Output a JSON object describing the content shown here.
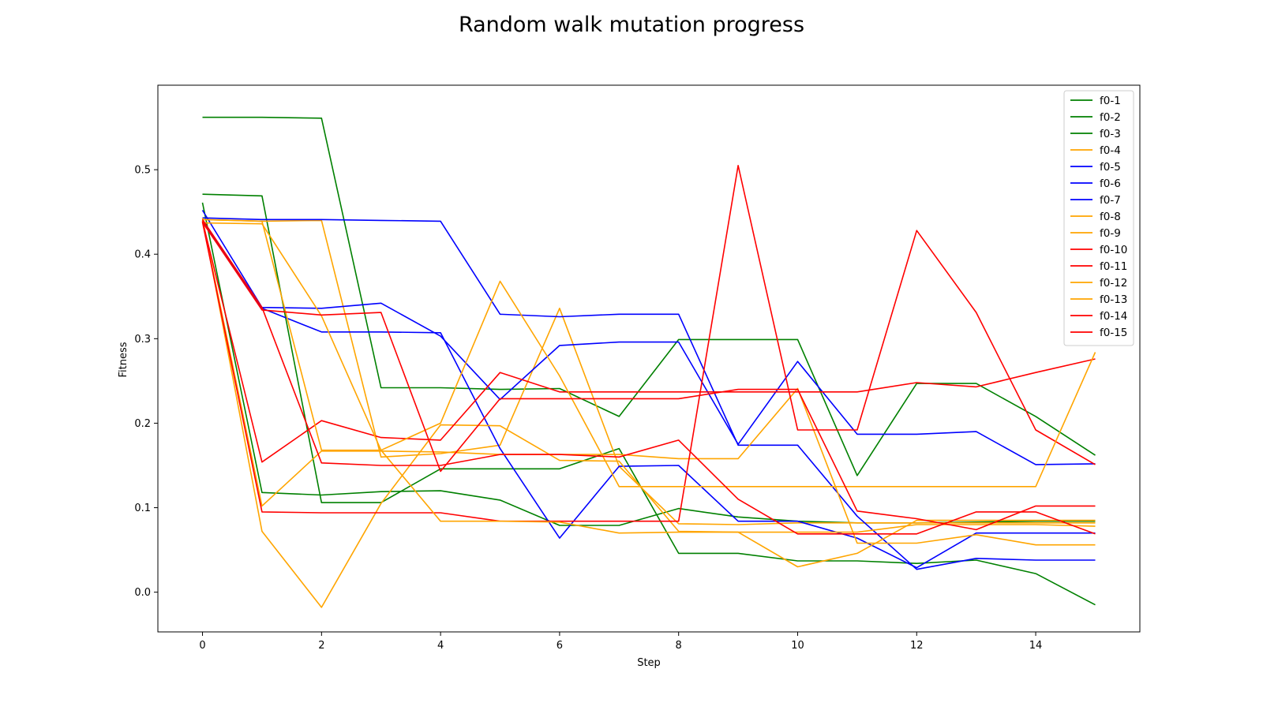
{
  "chart_data": {
    "type": "line",
    "title": "Random walk mutation progress",
    "xlabel": "Step",
    "ylabel": "Fitness",
    "xlim": [
      -0.75,
      15.75
    ],
    "ylim": [
      -0.047,
      0.6
    ],
    "xticks": [
      0,
      2,
      4,
      6,
      8,
      10,
      12,
      14
    ],
    "yticks": [
      0.0,
      0.1,
      0.2,
      0.3,
      0.4,
      0.5
    ],
    "grid": false,
    "legend_position": "top-right",
    "x": [
      0,
      1,
      2,
      3,
      4,
      5,
      6,
      7,
      8,
      9,
      10,
      11,
      12,
      13,
      14,
      15
    ],
    "series": [
      {
        "name": "f0-1",
        "color": "#008000",
        "values": [
          0.562,
          0.562,
          0.561,
          0.242,
          0.242,
          0.24,
          0.241,
          0.208,
          0.299,
          0.299,
          0.299,
          0.138,
          0.247,
          0.247,
          0.208,
          0.162
        ]
      },
      {
        "name": "f0-2",
        "color": "#008000",
        "values": [
          0.471,
          0.469,
          0.106,
          0.106,
          0.146,
          0.146,
          0.146,
          0.17,
          0.046,
          0.046,
          0.037,
          0.037,
          0.034,
          0.038,
          0.022,
          -0.015
        ]
      },
      {
        "name": "f0-3",
        "color": "#008000",
        "values": [
          0.461,
          0.118,
          0.115,
          0.119,
          0.12,
          0.109,
          0.079,
          0.079,
          0.099,
          0.089,
          0.084,
          0.082,
          0.082,
          0.083,
          0.084,
          0.084
        ]
      },
      {
        "name": "f0-4",
        "color": "#FFA500",
        "values": [
          0.441,
          0.439,
          0.44,
          0.16,
          0.164,
          0.174,
          0.336,
          0.149,
          0.081,
          0.08,
          0.082,
          0.082,
          0.082,
          0.082,
          0.082,
          0.082
        ]
      },
      {
        "name": "f0-5",
        "color": "#0000FF",
        "values": [
          0.443,
          0.441,
          0.441,
          0.44,
          0.439,
          0.329,
          0.326,
          0.329,
          0.329,
          0.174,
          0.174,
          0.09,
          0.027,
          0.04,
          0.038,
          0.038
        ]
      },
      {
        "name": "f0-6",
        "color": "#0000FF",
        "values": [
          0.452,
          0.337,
          0.336,
          0.342,
          0.303,
          0.228,
          0.292,
          0.296,
          0.296,
          0.175,
          0.273,
          0.187,
          0.187,
          0.19,
          0.151,
          0.152
        ]
      },
      {
        "name": "f0-7",
        "color": "#0000FF",
        "values": [
          0.44,
          0.336,
          0.308,
          0.308,
          0.307,
          0.17,
          0.064,
          0.149,
          0.15,
          0.084,
          0.084,
          0.064,
          0.029,
          0.07,
          0.07,
          0.07
        ]
      },
      {
        "name": "f0-8",
        "color": "#FFA500",
        "values": [
          0.44,
          0.102,
          0.167,
          0.167,
          0.166,
          0.163,
          0.163,
          0.163,
          0.158,
          0.158,
          0.241,
          0.058,
          0.058,
          0.068,
          0.056,
          0.056
        ]
      },
      {
        "name": "f0-9",
        "color": "#FFA500",
        "values": [
          0.443,
          0.072,
          -0.018,
          0.105,
          0.198,
          0.197,
          0.156,
          0.155,
          0.072,
          0.071,
          0.03,
          0.046,
          0.085,
          0.085,
          0.085,
          0.085
        ]
      },
      {
        "name": "f0-10",
        "color": "#FF0000",
        "values": [
          0.439,
          0.154,
          0.203,
          0.183,
          0.18,
          0.26,
          0.237,
          0.237,
          0.237,
          0.237,
          0.237,
          0.237,
          0.248,
          0.243,
          0.26,
          0.276
        ]
      },
      {
        "name": "f0-11",
        "color": "#FF0000",
        "values": [
          0.438,
          0.095,
          0.094,
          0.094,
          0.094,
          0.084,
          0.084,
          0.084,
          0.084,
          0.505,
          0.192,
          0.192,
          0.428,
          0.331,
          0.192,
          0.151
        ]
      },
      {
        "name": "f0-12",
        "color": "#FFA500",
        "values": [
          0.437,
          0.436,
          0.327,
          0.168,
          0.084,
          0.084,
          0.083,
          0.07,
          0.071,
          0.071,
          0.071,
          0.071,
          0.08,
          0.08,
          0.08,
          0.078
        ]
      },
      {
        "name": "f0-13",
        "color": "#FFA500",
        "values": [
          0.441,
          0.439,
          0.168,
          0.168,
          0.2,
          0.368,
          0.256,
          0.125,
          0.125,
          0.125,
          0.125,
          0.125,
          0.125,
          0.125,
          0.125,
          0.284
        ]
      },
      {
        "name": "f0-14",
        "color": "#FF0000",
        "values": [
          0.438,
          0.334,
          0.328,
          0.331,
          0.143,
          0.229,
          0.229,
          0.229,
          0.229,
          0.24,
          0.24,
          0.096,
          0.087,
          0.074,
          0.102,
          0.102
        ]
      },
      {
        "name": "f0-15",
        "color": "#FF0000",
        "values": [
          0.441,
          0.337,
          0.153,
          0.15,
          0.15,
          0.163,
          0.163,
          0.16,
          0.18,
          0.11,
          0.069,
          0.069,
          0.069,
          0.095,
          0.095,
          0.069
        ]
      }
    ]
  }
}
